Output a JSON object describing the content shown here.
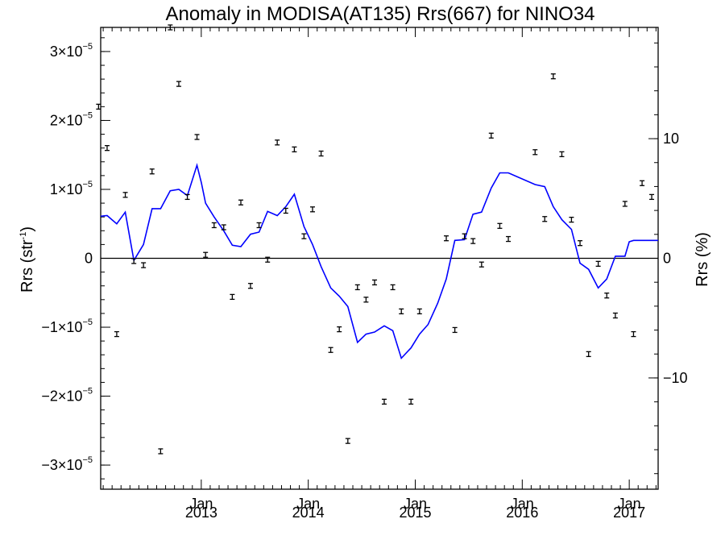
{
  "chart_data": {
    "type": "scatter",
    "title": "Anomaly in MODISA(AT135) Rrs(667) for NINO34",
    "ylabel_left_main": "Rrs (str",
    "ylabel_left_sup": "-1",
    "ylabel_left_close": ")",
    "ylabel_right": "Rrs (%)",
    "xlim": [
      2012.06,
      2017.27
    ],
    "ylim": [
      -3.35e-05,
      3.35e-05
    ],
    "y2lim": [
      -19.3,
      19.3
    ],
    "left_ticks": [
      {
        "value": 3e-05,
        "mant": "3",
        "x10": "×10",
        "exp": "−5"
      },
      {
        "value": 2e-05,
        "mant": "2",
        "x10": "×10",
        "exp": "−5"
      },
      {
        "value": 1e-05,
        "mant": "1",
        "x10": "×10",
        "exp": "−5"
      },
      {
        "value": 0,
        "plain": "0"
      },
      {
        "value": -1e-05,
        "mant": "−1",
        "x10": "×10",
        "exp": "−5"
      },
      {
        "value": -2e-05,
        "mant": "−2",
        "x10": "×10",
        "exp": "−5"
      },
      {
        "value": -3e-05,
        "mant": "−3",
        "x10": "×10",
        "exp": "−5"
      }
    ],
    "right_ticks": [
      {
        "value": 10,
        "label": "10"
      },
      {
        "value": 0,
        "label": "0"
      },
      {
        "value": -10,
        "label": "−10"
      }
    ],
    "x_ticks": [
      {
        "value": 2013.0,
        "month": "Jan",
        "year": "2013"
      },
      {
        "value": 2014.0,
        "month": "Jan",
        "year": "2014"
      },
      {
        "value": 2015.0,
        "month": "Jan",
        "year": "2015"
      },
      {
        "value": 2016.0,
        "month": "Jan",
        "year": "2016"
      },
      {
        "value": 2017.0,
        "month": "Jan",
        "year": "2017"
      }
    ],
    "zero_line": 0,
    "series": [
      {
        "kind": "line",
        "color": "#0000ff",
        "x": [
          2012.06,
          2012.12,
          2012.21,
          2012.29,
          2012.37,
          2012.46,
          2012.54,
          2012.62,
          2012.71,
          2012.79,
          2012.87,
          2012.96,
          2013.0,
          2013.04,
          2013.12,
          2013.21,
          2013.29,
          2013.37,
          2013.46,
          2013.54,
          2013.62,
          2013.71,
          2013.79,
          2013.87,
          2013.96,
          2014.04,
          2014.12,
          2014.21,
          2014.29,
          2014.37,
          2014.46,
          2014.54,
          2014.62,
          2014.71,
          2014.79,
          2014.87,
          2014.96,
          2015.04,
          2015.12,
          2015.21,
          2015.29,
          2015.37,
          2015.46,
          2015.54,
          2015.62,
          2015.71,
          2015.79,
          2015.87,
          2016.12,
          2016.21,
          2016.29,
          2016.37,
          2016.46,
          2016.54,
          2016.62,
          2016.71,
          2016.79,
          2016.87,
          2016.96,
          2017.0,
          2017.04,
          2017.12,
          2017.21,
          2017.27
        ],
        "values": [
          6.1e-06,
          6.2e-06,
          5e-06,
          6.7e-06,
          -3e-07,
          2e-06,
          7.2e-06,
          7.2e-06,
          9.8e-06,
          1e-05,
          9.1e-06,
          1.35e-05,
          1.1e-05,
          8e-06,
          6e-06,
          4e-06,
          1.9e-06,
          1.7e-06,
          3.5e-06,
          3.8e-06,
          6.8e-06,
          6.2e-06,
          7.5e-06,
          9.3e-06,
          4.6e-06,
          2e-06,
          -1.2e-06,
          -4.3e-06,
          -5.5e-06,
          -7e-06,
          -1.22e-05,
          -1.1e-05,
          -1.07e-05,
          -9.8e-06,
          -1.05e-05,
          -1.45e-05,
          -1.3e-05,
          -1.1e-05,
          -9.6e-06,
          -6.5e-06,
          -3e-06,
          2.6e-06,
          2.7e-06,
          6.4e-06,
          6.7e-06,
          1.02e-05,
          1.24e-05,
          1.24e-05,
          1.07e-05,
          1.04e-05,
          7.5e-06,
          5.6e-06,
          4.2e-06,
          -7e-07,
          -1.6e-06,
          -4.3e-06,
          -3e-06,
          3e-07,
          3e-07,
          2.4e-06,
          2.6e-06,
          2.6e-06,
          2.6e-06,
          2.6e-06
        ]
      },
      {
        "kind": "points",
        "color": "#000000",
        "x": [
          2012.04,
          2012.12,
          2012.21,
          2012.29,
          2012.37,
          2012.46,
          2012.54,
          2012.62,
          2012.71,
          2012.79,
          2012.87,
          2012.96,
          2013.04,
          2013.12,
          2013.21,
          2013.29,
          2013.37,
          2013.46,
          2013.54,
          2013.62,
          2013.71,
          2013.79,
          2013.87,
          2013.96,
          2014.04,
          2014.12,
          2014.21,
          2014.29,
          2014.37,
          2014.46,
          2014.54,
          2014.62,
          2014.71,
          2014.79,
          2014.87,
          2014.96,
          2015.04,
          2015.29,
          2015.37,
          2015.46,
          2015.54,
          2015.62,
          2015.71,
          2015.79,
          2015.87,
          2016.12,
          2016.21,
          2016.29,
          2016.37,
          2016.46,
          2016.54,
          2016.62,
          2016.71,
          2016.79,
          2016.87,
          2016.96,
          2017.04,
          2017.12,
          2017.21
        ],
        "values": [
          2.2e-05,
          1.6e-05,
          -1.1e-05,
          9.2e-06,
          -4e-07,
          -1e-06,
          1.26e-05,
          -2.8e-05,
          3.35e-05,
          2.53e-05,
          8.9e-06,
          1.76e-05,
          5e-07,
          4.8e-06,
          4.5e-06,
          -5.6e-06,
          8.1e-06,
          -4e-06,
          4.8e-06,
          -2e-07,
          1.68e-05,
          6.9e-06,
          1.58e-05,
          3.2e-06,
          7.1e-06,
          1.52e-05,
          -1.33e-05,
          -1.03e-05,
          -2.65e-05,
          -4.2e-06,
          -6e-06,
          -3.5e-06,
          -2.08e-05,
          -4.2e-06,
          -7.7e-06,
          -2.08e-05,
          -7.7e-06,
          2.9e-06,
          -1.04e-05,
          3.2e-06,
          2.5e-06,
          -9e-07,
          1.78e-05,
          4.7e-06,
          2.8e-06,
          1.54e-05,
          5.7e-06,
          2.64e-05,
          1.51e-05,
          5.6e-06,
          2.2e-06,
          -1.39e-05,
          -8e-07,
          -5.4e-06,
          -8.3e-06,
          7.9e-06,
          -1.1e-05,
          1.09e-05,
          8.9e-06
        ]
      }
    ]
  }
}
